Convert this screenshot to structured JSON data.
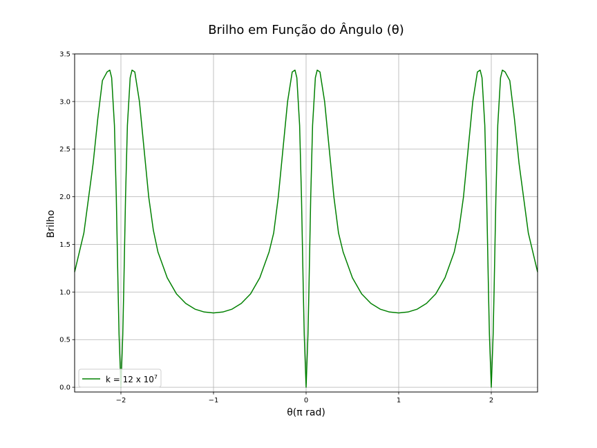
{
  "chart_data": {
    "type": "line",
    "title": "Brilho em Função do Ângulo (θ)",
    "xlabel": "θ(π rad)",
    "ylabel": "Brilho",
    "xlim": [
      -2.5,
      2.5
    ],
    "ylim": [
      -0.05,
      3.5
    ],
    "x_ticks": [
      -2,
      -1,
      0,
      1,
      2
    ],
    "x_tick_labels": [
      "−2",
      "−1",
      "0",
      "1",
      "2"
    ],
    "y_ticks": [
      0.0,
      0.5,
      1.0,
      1.5,
      2.0,
      2.5,
      3.0,
      3.5
    ],
    "y_tick_labels": [
      "0.0",
      "0.5",
      "1.0",
      "1.5",
      "2.0",
      "2.5",
      "3.0",
      "3.5"
    ],
    "grid": true,
    "legend_position": "lower-left",
    "series": [
      {
        "name": "k = 12 x 10^7",
        "legend_label": "k = 12 x 10",
        "legend_superscript": "7",
        "color": "#008000",
        "x": [
          -2.5,
          -2.4,
          -2.3,
          -2.25,
          -2.2,
          -2.15,
          -2.12,
          -2.1,
          -2.07,
          -2.05,
          -2.03,
          -2.02,
          -2.0,
          -1.98,
          -1.97,
          -1.95,
          -1.93,
          -1.9,
          -1.88,
          -1.85,
          -1.8,
          -1.75,
          -1.7,
          -1.65,
          -1.6,
          -1.5,
          -1.4,
          -1.3,
          -1.2,
          -1.1,
          -1.0,
          -0.9,
          -0.8,
          -0.7,
          -0.6,
          -0.5,
          -0.4,
          -0.35,
          -0.3,
          -0.25,
          -0.2,
          -0.15,
          -0.12,
          -0.1,
          -0.07,
          -0.05,
          -0.03,
          -0.02,
          0.0,
          0.02,
          0.03,
          0.05,
          0.07,
          0.1,
          0.12,
          0.15,
          0.2,
          0.25,
          0.3,
          0.35,
          0.4,
          0.5,
          0.6,
          0.7,
          0.8,
          0.9,
          1.0,
          1.1,
          1.2,
          1.3,
          1.4,
          1.5,
          1.6,
          1.65,
          1.7,
          1.75,
          1.8,
          1.85,
          1.88,
          1.9,
          1.93,
          1.95,
          1.97,
          1.98,
          2.0,
          2.02,
          2.03,
          2.05,
          2.07,
          2.1,
          2.12,
          2.15,
          2.2,
          2.25,
          2.3,
          2.4,
          2.5
        ],
        "y": [
          1.21,
          1.62,
          2.35,
          2.82,
          3.22,
          3.31,
          3.33,
          3.25,
          2.75,
          2.0,
          1.0,
          0.55,
          0.0,
          0.55,
          1.0,
          2.0,
          2.75,
          3.25,
          3.33,
          3.31,
          3.0,
          2.5,
          2.0,
          1.65,
          1.42,
          1.15,
          0.98,
          0.88,
          0.82,
          0.79,
          0.78,
          0.79,
          0.82,
          0.88,
          0.98,
          1.15,
          1.42,
          1.62,
          2.0,
          2.5,
          3.0,
          3.31,
          3.33,
          3.25,
          2.75,
          2.0,
          1.0,
          0.55,
          0.0,
          0.55,
          1.0,
          2.0,
          2.75,
          3.25,
          3.33,
          3.31,
          3.0,
          2.5,
          2.0,
          1.62,
          1.42,
          1.15,
          0.98,
          0.88,
          0.82,
          0.79,
          0.78,
          0.79,
          0.82,
          0.88,
          0.98,
          1.15,
          1.42,
          1.65,
          2.0,
          2.5,
          3.0,
          3.31,
          3.33,
          3.25,
          2.75,
          2.0,
          1.0,
          0.55,
          0.0,
          0.55,
          1.0,
          2.0,
          2.75,
          3.25,
          3.33,
          3.31,
          3.22,
          2.82,
          2.35,
          1.62,
          1.21
        ]
      }
    ]
  }
}
